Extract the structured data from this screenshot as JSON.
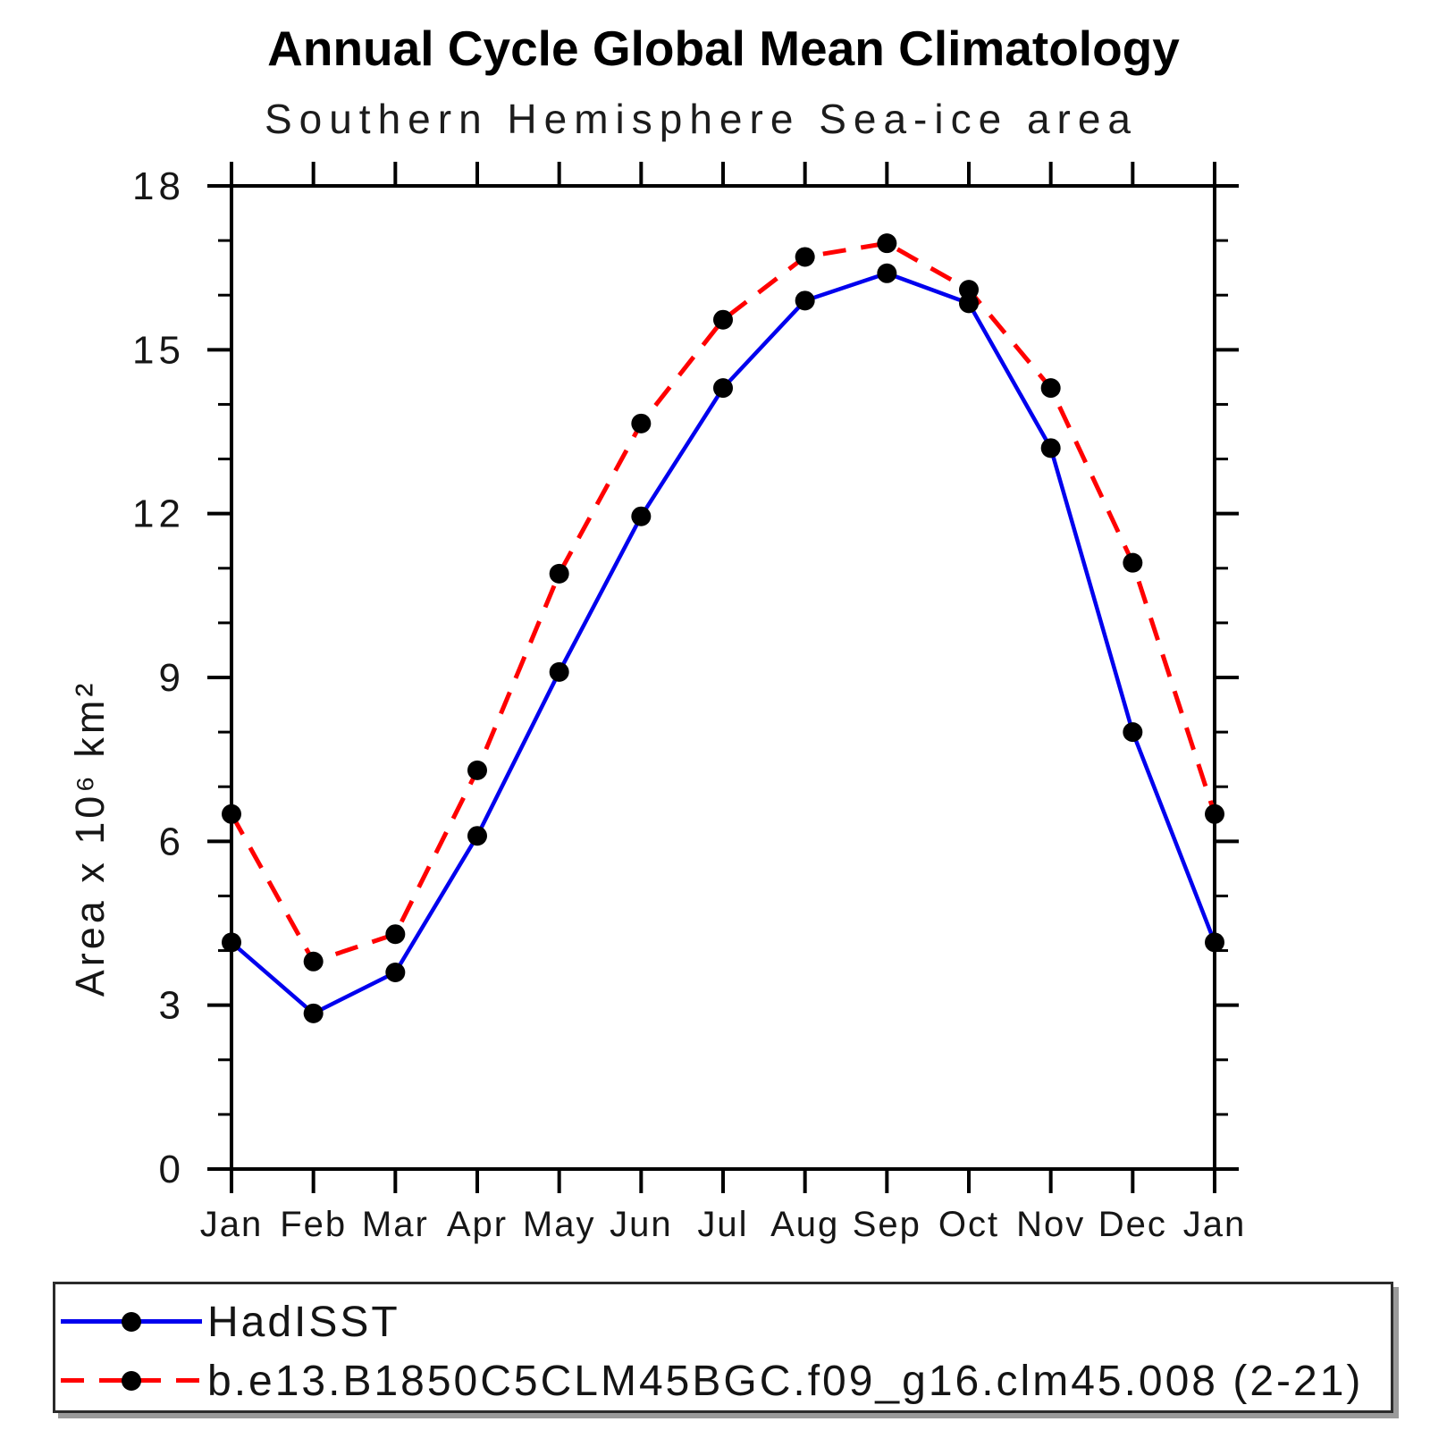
{
  "chart": {
    "title": "Annual Cycle Global Mean Climatology",
    "subtitle": "Southern Hemisphere Sea-ice area"
  },
  "chart_data": {
    "type": "line",
    "title": "Annual Cycle Global Mean Climatology",
    "subtitle": "Southern Hemisphere Sea-ice area",
    "xlabel": "",
    "ylabel": "Area x 10⁶ km²",
    "ylim": [
      0,
      18
    ],
    "yticks_major": [
      0,
      3,
      6,
      9,
      12,
      15,
      18
    ],
    "ytick_minor_step": 1,
    "grid": false,
    "legend_position": "bottom-box",
    "categories": [
      "Jan",
      "Feb",
      "Mar",
      "Apr",
      "May",
      "Jun",
      "Jul",
      "Aug",
      "Sep",
      "Oct",
      "Nov",
      "Dec",
      "Jan"
    ],
    "series": [
      {
        "name": "HadISST",
        "color": "#0000ee",
        "style": "solid",
        "marker": "circle",
        "marker_color": "#000000",
        "values": [
          4.15,
          2.85,
          3.6,
          6.1,
          9.1,
          11.95,
          14.3,
          15.9,
          16.4,
          15.85,
          13.2,
          8.0,
          4.15
        ]
      },
      {
        "name": "b.e13.B1850C5CLM45BGC.f09_g16.clm45.008 (2-21)",
        "color": "#ff0000",
        "style": "dashed",
        "marker": "circle",
        "marker_color": "#000000",
        "values": [
          6.5,
          3.8,
          4.3,
          7.3,
          10.9,
          13.65,
          15.55,
          16.7,
          16.95,
          16.1,
          14.3,
          11.1,
          6.5
        ]
      }
    ]
  }
}
